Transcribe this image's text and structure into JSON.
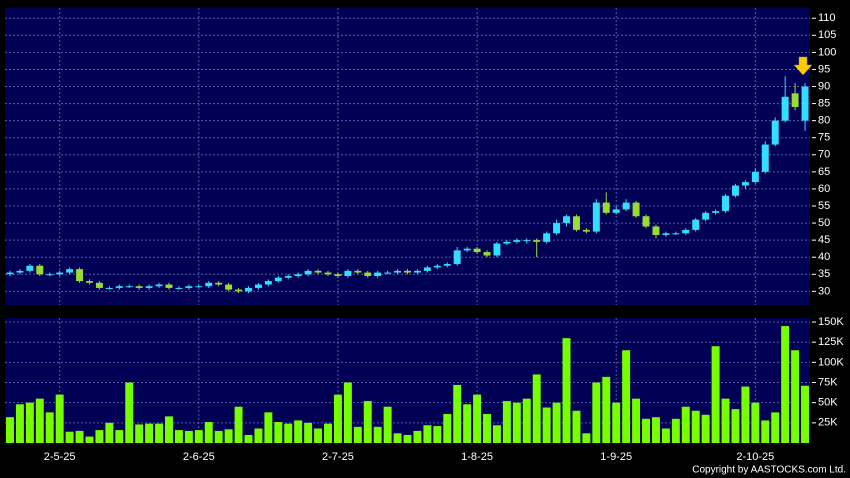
{
  "chart_data": [
    {
      "type": "candlestick",
      "open": [
        35,
        35.5,
        36,
        37.5,
        35,
        35,
        35.5,
        36.5,
        33,
        32.5,
        31,
        31,
        31.5,
        31.5,
        31,
        31.5,
        32,
        31,
        31,
        31.5,
        31.5,
        32.5,
        32,
        30.5,
        30,
        31,
        32,
        33,
        34,
        34.5,
        35,
        36,
        35.5,
        35,
        34.5,
        36,
        35.5,
        34.5,
        35.5,
        35.5,
        36,
        35.5,
        36,
        37,
        37.5,
        38,
        42,
        42.5,
        41.5,
        40.5,
        44,
        44.5,
        45,
        45,
        44.5,
        47,
        50,
        52,
        48,
        47.5,
        56,
        53,
        54,
        56,
        52,
        49,
        46.5,
        47,
        47,
        48,
        51,
        53,
        53.5,
        58,
        61,
        62,
        65,
        73,
        80,
        88,
        80
      ],
      "high": [
        36,
        36.5,
        38,
        38,
        35.5,
        36,
        37,
        37,
        33.5,
        33,
        31.5,
        32,
        32,
        32,
        32,
        32.5,
        32.5,
        31.5,
        32,
        32,
        33,
        33,
        32.5,
        31,
        31.5,
        32.5,
        33.5,
        34.5,
        35,
        35.5,
        36.5,
        36.5,
        36,
        35.5,
        36.5,
        36.5,
        36,
        36,
        36,
        36.5,
        36.5,
        36.5,
        37.5,
        38,
        38.5,
        43,
        43,
        43,
        42,
        44.5,
        45,
        45.5,
        45.5,
        45.5,
        47.5,
        51,
        52.5,
        52.5,
        48.5,
        57,
        59,
        55,
        57,
        56.5,
        52.5,
        49.5,
        47.5,
        47.5,
        48.5,
        51.5,
        53.5,
        54,
        58.5,
        61.5,
        62.5,
        66,
        74,
        81,
        93,
        91,
        91
      ],
      "low": [
        34.5,
        35,
        35.5,
        34.5,
        34.5,
        34.5,
        35,
        32.5,
        32,
        30.5,
        30.5,
        30.5,
        31,
        30.5,
        30.5,
        31,
        30.5,
        30.5,
        30.5,
        31,
        31,
        31.5,
        30,
        29.5,
        29.5,
        30.5,
        31.5,
        32.5,
        33.5,
        34,
        34.5,
        35,
        34.5,
        34,
        34,
        35,
        34,
        34,
        35,
        35,
        35,
        35,
        35.5,
        36.5,
        37,
        37.5,
        41.5,
        41,
        40,
        40,
        43.5,
        44,
        44,
        40,
        44,
        46.5,
        49,
        47.5,
        47,
        47,
        52.5,
        52.5,
        53.5,
        51.5,
        48.5,
        45.5,
        46,
        46.5,
        46.5,
        47.5,
        50.5,
        52.5,
        53,
        57.5,
        60,
        61.5,
        64.5,
        72.5,
        79.5,
        83,
        77
      ],
      "close": [
        35.5,
        36,
        37.5,
        35,
        35,
        35.5,
        36.5,
        33,
        32.5,
        31,
        31,
        31.5,
        31.5,
        31,
        31.5,
        32,
        31,
        31,
        31.5,
        31.5,
        32.5,
        32,
        30.5,
        30,
        31,
        32,
        33,
        34,
        34.5,
        35,
        36,
        35.5,
        35,
        34.5,
        36,
        35.5,
        34.5,
        35.5,
        35.5,
        36,
        35.5,
        36,
        37,
        37.5,
        38,
        42,
        42.5,
        41.5,
        40.5,
        44,
        44.5,
        45,
        45,
        44.5,
        47,
        50,
        52,
        48,
        47.5,
        56,
        53,
        54,
        56,
        52,
        49,
        46.5,
        47,
        47,
        48,
        51,
        53,
        53.5,
        58,
        61,
        62,
        65,
        73,
        80,
        87,
        84,
        90
      ],
      "up_color": "#33ddff",
      "down_color": "#99dd33",
      "ylim": [
        26,
        113
      ],
      "yticks": [
        30,
        35,
        40,
        45,
        50,
        55,
        60,
        65,
        70,
        75,
        80,
        85,
        90,
        95,
        100,
        105,
        110
      ],
      "grid": true
    },
    {
      "type": "bar",
      "categories": [
        null,
        null,
        null,
        null,
        null,
        "2-5-25",
        null,
        null,
        null,
        null,
        null,
        null,
        null,
        null,
        null,
        null,
        null,
        null,
        null,
        "2-6-25",
        null,
        null,
        null,
        null,
        null,
        null,
        null,
        null,
        null,
        null,
        null,
        null,
        null,
        "2-7-25",
        null,
        null,
        null,
        null,
        null,
        null,
        null,
        null,
        null,
        null,
        null,
        null,
        null,
        "1-8-25",
        null,
        null,
        null,
        null,
        null,
        null,
        null,
        null,
        null,
        null,
        null,
        null,
        null,
        "1-9-25",
        null,
        null,
        null,
        null,
        null,
        null,
        null,
        null,
        null,
        null,
        null,
        null,
        null,
        "2-10-25",
        null,
        null,
        null,
        null,
        null
      ],
      "values": [
        32000,
        48000,
        50000,
        55000,
        38000,
        60000,
        14000,
        15000,
        8000,
        16000,
        25000,
        16000,
        75000,
        23000,
        24000,
        24000,
        33000,
        16000,
        15000,
        16000,
        26000,
        15000,
        17000,
        45000,
        10000,
        18000,
        38000,
        26000,
        24000,
        28000,
        25000,
        18000,
        24000,
        60000,
        75000,
        20000,
        52000,
        20000,
        45000,
        12000,
        10000,
        15000,
        22000,
        21000,
        36000,
        72000,
        48000,
        60000,
        36000,
        22000,
        52000,
        50000,
        55000,
        85000,
        44000,
        50000,
        130000,
        40000,
        12000,
        75000,
        82000,
        50000,
        115000,
        55000,
        30000,
        32000,
        18000,
        30000,
        45000,
        40000,
        35000,
        120000,
        55000,
        42000,
        70000,
        50000,
        28000,
        38000,
        145000,
        115000,
        71000
      ],
      "color": "#77ff00",
      "ylim": [
        0,
        155000
      ],
      "yticks": [
        {
          "value": 25000,
          "label": "25K"
        },
        {
          "value": 50000,
          "label": "50K"
        },
        {
          "value": 75000,
          "label": "75K"
        },
        {
          "value": 100000,
          "label": "100K"
        },
        {
          "value": 125000,
          "label": "125K"
        },
        {
          "value": 150000,
          "label": "150K"
        }
      ],
      "grid": true,
      "footer": "Copyright by AASTOCKS.com Ltd."
    }
  ]
}
